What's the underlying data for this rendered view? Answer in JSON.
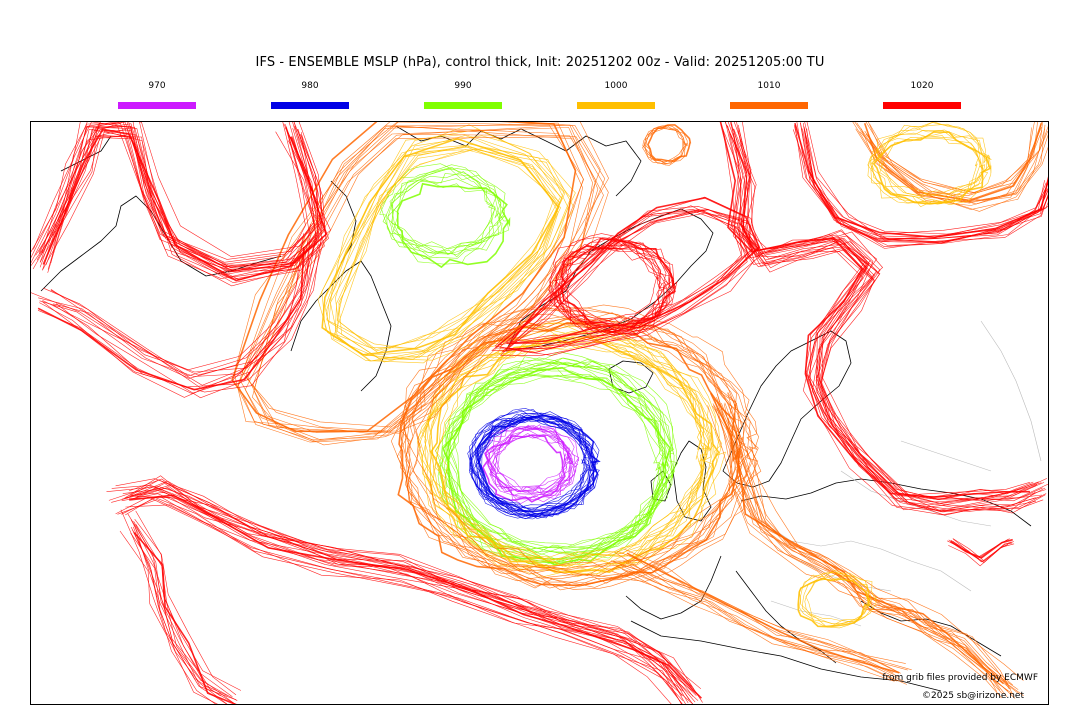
{
  "title": "IFS - ENSEMBLE MSLP (hPa), control thick, Init: 20251202 00z - Valid: 20251205:00 TU",
  "legend": [
    {
      "label": "970",
      "color": "#cc1aff"
    },
    {
      "label": "980",
      "color": "#0000e6"
    },
    {
      "label": "990",
      "color": "#80ff00"
    },
    {
      "label": "1000",
      "color": "#ffbf00"
    },
    {
      "label": "1010",
      "color": "#ff6600"
    },
    {
      "label": "1020",
      "color": "#ff0000"
    }
  ],
  "credits": {
    "provider": "from grib files provided by ECMWF",
    "copyright": "©2025 sb@irizone.net"
  },
  "map": {
    "projection": "stereographic",
    "region": "North Atlantic / Europe",
    "features": [
      "ensemble-isobars",
      "coastlines",
      "country-borders"
    ]
  }
}
